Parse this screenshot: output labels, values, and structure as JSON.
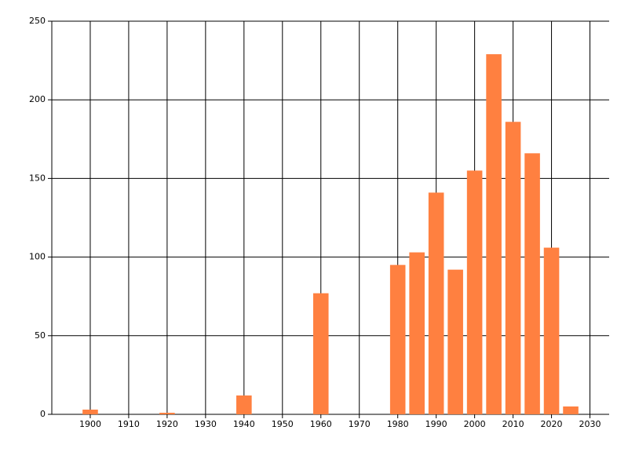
{
  "chart_data": {
    "type": "bar",
    "x": [
      1900,
      1920,
      1940,
      1960,
      1980,
      1985,
      1990,
      1995,
      2000,
      2005,
      2010,
      2015,
      2020,
      2025
    ],
    "values": [
      3,
      1,
      12,
      77,
      95,
      103,
      141,
      92,
      155,
      229,
      186,
      166,
      106,
      5
    ],
    "color": "#ff8040",
    "xlim": [
      1890,
      2035
    ],
    "xticks": [
      1900,
      1910,
      1920,
      1930,
      1940,
      1950,
      1960,
      1970,
      1980,
      1990,
      2000,
      2010,
      2020,
      2030
    ],
    "ylim": [
      0,
      250
    ],
    "yticks": [
      0,
      50,
      100,
      150,
      200,
      250
    ],
    "grid": true
  }
}
